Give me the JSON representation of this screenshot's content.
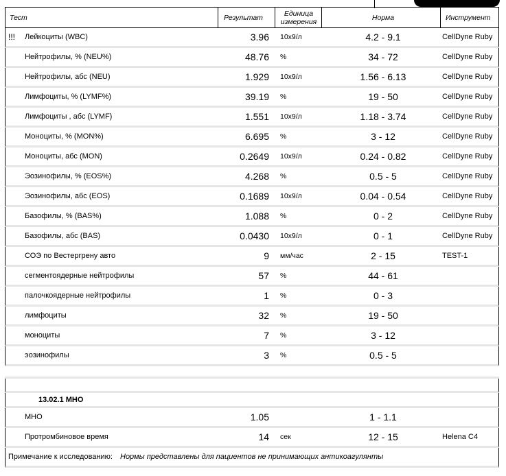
{
  "header": {
    "test": "Тест",
    "result": "Результат",
    "unit_line1": "Единица",
    "unit_line2": "измерения",
    "norm": "Норма",
    "instrument": "Инструмент"
  },
  "rows": [
    {
      "flag": "!!!",
      "name": "Лейкоциты (WBC)",
      "result": "3.96",
      "unit": "10x9/л",
      "norm": "4.2 - 9.1",
      "instrument": "CellDyne Ruby"
    },
    {
      "flag": "",
      "name": "Нейтрофилы, % (NEU%)",
      "result": "48.76",
      "unit": "%",
      "norm": "34 - 72",
      "instrument": "CellDyne Ruby"
    },
    {
      "flag": "",
      "name": "Нейтрофилы, абс (NEU)",
      "result": "1.929",
      "unit": "10x9/л",
      "norm": "1.56 - 6.13",
      "instrument": "CellDyne Ruby"
    },
    {
      "flag": "",
      "name": "Лимфоциты, % (LYMF%)",
      "result": "39.19",
      "unit": "%",
      "norm": "19 - 50",
      "instrument": "CellDyne Ruby"
    },
    {
      "flag": "",
      "name": "Лимфоциты , абс (LYMF)",
      "result": "1.551",
      "unit": "10x9/л",
      "norm": "1.18 - 3.74",
      "instrument": "CellDyne Ruby"
    },
    {
      "flag": "",
      "name": "Моноциты, % (MON%)",
      "result": "6.695",
      "unit": "%",
      "norm": "3 - 12",
      "instrument": "CellDyne Ruby"
    },
    {
      "flag": "",
      "name": "Моноциты, абс (MON)",
      "result": "0.2649",
      "unit": "10x9/л",
      "norm": "0.24 - 0.82",
      "instrument": "CellDyne Ruby"
    },
    {
      "flag": "",
      "name": "Эозинофилы, % (EOS%)",
      "result": "4.268",
      "unit": "%",
      "norm": "0.5 - 5",
      "instrument": "CellDyne Ruby"
    },
    {
      "flag": "",
      "name": "Эозинофилы, абс (EOS)",
      "result": "0.1689",
      "unit": "10x9/л",
      "norm": "0.04 - 0.54",
      "instrument": "CellDyne Ruby"
    },
    {
      "flag": "",
      "name": "Базофилы, % (BAS%)",
      "result": "1.088",
      "unit": "%",
      "norm": "0 - 2",
      "instrument": "CellDyne Ruby"
    },
    {
      "flag": "",
      "name": "Базофилы, абс (BAS)",
      "result": "0.0430",
      "unit": "10x9/л",
      "norm": "0 - 1",
      "instrument": "CellDyne Ruby"
    },
    {
      "flag": "",
      "name": "СОЭ по Вестергрену авто",
      "result": "9",
      "unit": "мм/час",
      "norm": "2 - 15",
      "instrument": "TEST-1"
    },
    {
      "flag": "",
      "name": "сегментоядерные нейтрофилы",
      "result": "57",
      "unit": "%",
      "norm": "44 - 61",
      "instrument": ""
    },
    {
      "flag": "",
      "name": "палочкоядерные нейтрофилы",
      "result": "1",
      "unit": "%",
      "norm": "0 - 3",
      "instrument": ""
    },
    {
      "flag": "",
      "name": "лимфоциты",
      "result": "32",
      "unit": "%",
      "norm": "19 - 50",
      "instrument": ""
    },
    {
      "flag": "",
      "name": "моноциты",
      "result": "7",
      "unit": "%",
      "norm": "3 - 12",
      "instrument": ""
    },
    {
      "flag": "",
      "name": "эозинофилы",
      "result": "3",
      "unit": "%",
      "norm": "0.5 - 5",
      "instrument": ""
    }
  ],
  "section2": {
    "group_title": "13.02.1 МНО",
    "rows": [
      {
        "name": "МНО",
        "result": "1.05",
        "unit": "",
        "norm": "1 - 1.1",
        "instrument": ""
      },
      {
        "name": "Протромбиновое время",
        "result": "14",
        "unit": "сек",
        "norm": "12 - 15",
        "instrument": "Helena C4"
      }
    ],
    "note_label": "Примечание к исследованию:",
    "note_text": "Нормы представлены для пациентов не принимающих антикоагулянты"
  }
}
